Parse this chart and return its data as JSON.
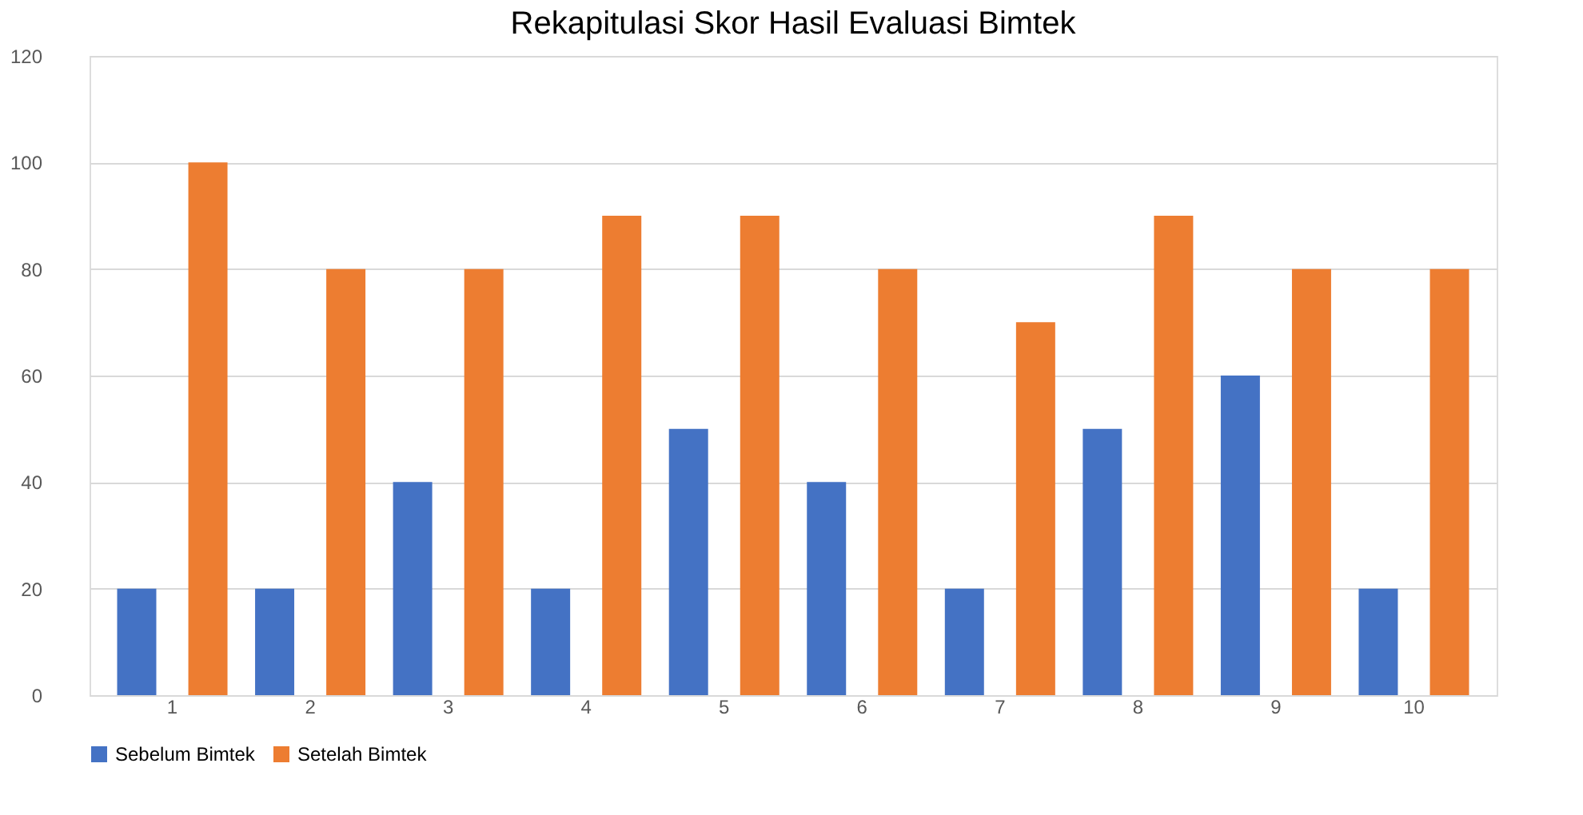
{
  "chart_data": {
    "type": "bar",
    "title": "Rekapitulasi Skor Hasil Evaluasi Bimtek",
    "categories": [
      "1",
      "2",
      "3",
      "4",
      "5",
      "6",
      "7",
      "8",
      "9",
      "10"
    ],
    "series": [
      {
        "name": "Sebelum Bimtek",
        "color": "#4472c4",
        "values": [
          20,
          20,
          40,
          20,
          50,
          40,
          20,
          50,
          60,
          20
        ]
      },
      {
        "name": "Setelah Bimtek",
        "color": "#ed7d31",
        "values": [
          100,
          80,
          80,
          90,
          90,
          80,
          70,
          90,
          80,
          80
        ]
      }
    ],
    "ylim": [
      0,
      120
    ],
    "yticks": [
      0,
      20,
      40,
      60,
      80,
      100,
      120
    ],
    "grid": "y",
    "legend": "bottom"
  }
}
